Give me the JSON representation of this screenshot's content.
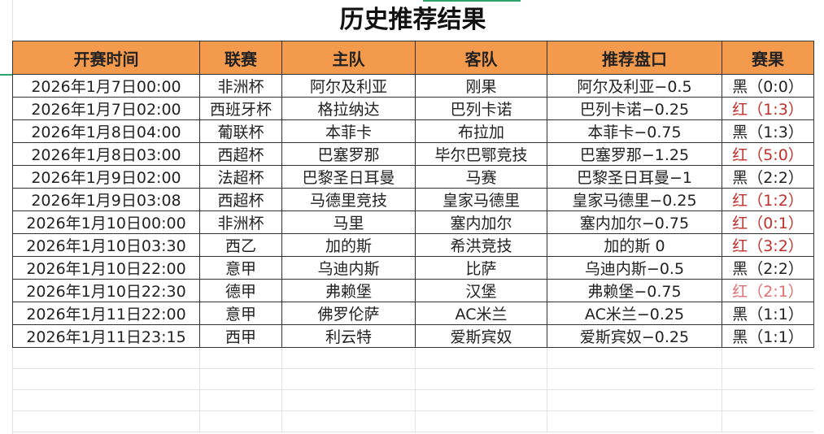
{
  "title": "历史推荐结果",
  "headers": [
    "开赛时间",
    "联赛",
    "主队",
    "客队",
    "推荐盘口",
    "赛果"
  ],
  "rows": [
    {
      "time": "2026年1月7日00:00",
      "league": "非洲杯",
      "home": "阿尔及利亚",
      "away": "刚果",
      "pick": "阿尔及利亚−0.5",
      "result": "黑（0:0）",
      "color": "black"
    },
    {
      "time": "2026年1月7日02:00",
      "league": "西班牙杯",
      "home": "格拉纳达",
      "away": "巴列卡诺",
      "pick": "巴列卡诺−0.25",
      "result": "红（1:3）",
      "color": "red"
    },
    {
      "time": "2026年1月8日04:00",
      "league": "葡联杯",
      "home": "本菲卡",
      "away": "布拉加",
      "pick": "本菲卡−0.75",
      "result": "黑（1:3）",
      "color": "black"
    },
    {
      "time": "2026年1月8日03:00",
      "league": "西超杯",
      "home": "巴塞罗那",
      "away": "毕尔巴鄂竞技",
      "pick": "巴塞罗那−1.25",
      "result": "红（5:0）",
      "color": "red"
    },
    {
      "time": "2026年1月9日02:00",
      "league": "法超杯",
      "home": "巴黎圣日耳曼",
      "away": "马赛",
      "pick": "巴黎圣日耳曼−1",
      "result": "黑（2:2）",
      "color": "black"
    },
    {
      "time": "2026年1月9日03:08",
      "league": "西超杯",
      "home": "马德里竞技",
      "away": "皇家马德里",
      "pick": "皇家马德里−0.25",
      "result": "红（1:2）",
      "color": "red"
    },
    {
      "time": "2026年1月10日00:00",
      "league": "非洲杯",
      "home": "马里",
      "away": "塞内加尔",
      "pick": "塞内加尔−0.75",
      "result": "红（0:1）",
      "color": "red"
    },
    {
      "time": "2026年1月10日03:30",
      "league": "西乙",
      "home": "加的斯",
      "away": "希洪竞技",
      "pick": "加的斯 0",
      "result": "红（3:2）",
      "color": "red"
    },
    {
      "time": "2026年1月10日22:00",
      "league": "意甲",
      "home": "乌迪内斯",
      "away": "比萨",
      "pick": "乌迪内斯−0.5",
      "result": "黑（2:2）",
      "color": "black"
    },
    {
      "time": "2026年1月10日22:30",
      "league": "德甲",
      "home": "弗赖堡",
      "away": "汉堡",
      "pick": "弗赖堡−0.75",
      "result": "红（2:1）",
      "color": "lightred"
    },
    {
      "time": "2026年1月11日22:00",
      "league": "意甲",
      "home": "佛罗伦萨",
      "away": "AC米兰",
      "pick": "AC米兰−0.25",
      "result": "黑（1:1）",
      "color": "black"
    },
    {
      "time": "2026年1月11日23:15",
      "league": "西甲",
      "home": "利云特",
      "away": "爱斯宾奴",
      "pick": "爱斯宾奴−0.25",
      "result": "黑（1:1）",
      "color": "black"
    }
  ],
  "colors": {
    "header_bg": "#f49a4c",
    "red": "#c0302b",
    "lightred": "#e07070"
  }
}
